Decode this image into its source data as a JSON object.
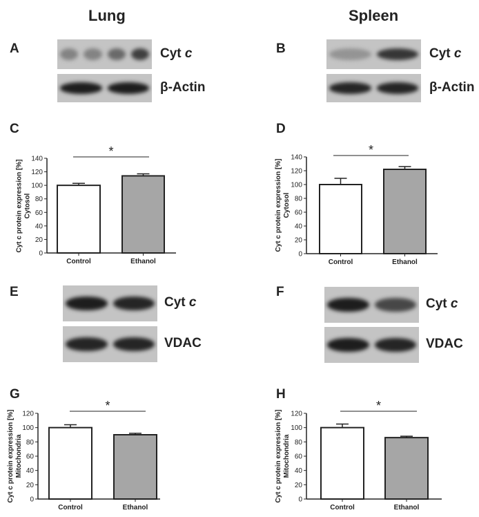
{
  "columns": {
    "left": "Lung",
    "right": "Spleen"
  },
  "panels": {
    "A": "A",
    "B": "B",
    "C": "C",
    "D": "D",
    "E": "E",
    "F": "F",
    "G": "G",
    "H": "H"
  },
  "blots": {
    "A": [
      {
        "label": "Cyt ",
        "label_italic": "c",
        "bands": [
          0.35,
          0.35,
          0.5,
          0.75
        ]
      },
      {
        "label": "β-Actin",
        "label_italic": "",
        "bands": [
          0.95,
          0.95
        ]
      }
    ],
    "B": [
      {
        "label": "Cyt ",
        "label_italic": "c",
        "bands": [
          0.25,
          0.8
        ]
      },
      {
        "label": "β-Actin",
        "label_italic": "",
        "bands": [
          0.9,
          0.9
        ]
      }
    ],
    "E": [
      {
        "label": "Cyt ",
        "label_italic": "c",
        "bands": [
          0.95,
          0.9
        ]
      },
      {
        "label": "VDAC",
        "label_italic": "",
        "bands": [
          0.9,
          0.9
        ]
      }
    ],
    "F": [
      {
        "label": "Cyt ",
        "label_italic": "c",
        "bands": [
          0.95,
          0.7
        ]
      },
      {
        "label": "VDAC",
        "label_italic": "",
        "bands": [
          0.95,
          0.9
        ]
      }
    ]
  },
  "chart_data": [
    {
      "panel": "C",
      "type": "bar",
      "categories": [
        "Control",
        "Ethanol"
      ],
      "values": [
        100,
        114
      ],
      "errors": [
        3,
        3
      ],
      "colors": [
        "#ffffff",
        "#a6a6a6"
      ],
      "ylabel": [
        "Cyt c protein expression [%]",
        "Cytosol"
      ],
      "ylim": [
        0,
        140
      ],
      "yticks": [
        0,
        20,
        40,
        60,
        80,
        100,
        120,
        140
      ],
      "significance": "*",
      "grid": false
    },
    {
      "panel": "D",
      "type": "bar",
      "categories": [
        "Control",
        "Ethanol"
      ],
      "values": [
        100,
        122
      ],
      "errors": [
        9,
        4
      ],
      "colors": [
        "#ffffff",
        "#a6a6a6"
      ],
      "ylabel": [
        "Cyt c protein expression [%]",
        "Cytosol"
      ],
      "ylim": [
        0,
        140
      ],
      "yticks": [
        0,
        20,
        40,
        60,
        80,
        100,
        120,
        140
      ],
      "significance": "*",
      "grid": false
    },
    {
      "panel": "G",
      "type": "bar",
      "categories": [
        "Control",
        "Ethanol"
      ],
      "values": [
        100,
        90
      ],
      "errors": [
        4,
        2
      ],
      "colors": [
        "#ffffff",
        "#a6a6a6"
      ],
      "ylabel": [
        "Cyt c protein expression [%]",
        "Mitochondria"
      ],
      "ylim": [
        0,
        120
      ],
      "yticks": [
        0,
        20,
        40,
        60,
        80,
        100,
        120
      ],
      "significance": "*",
      "grid": false
    },
    {
      "panel": "H",
      "type": "bar",
      "categories": [
        "Control",
        "Ethanol"
      ],
      "values": [
        100,
        86
      ],
      "errors": [
        5,
        2
      ],
      "colors": [
        "#ffffff",
        "#a6a6a6"
      ],
      "ylabel": [
        "Cyt c protein expression [%]",
        "Mitochondria"
      ],
      "ylim": [
        0,
        120
      ],
      "yticks": [
        0,
        20,
        40,
        60,
        80,
        100,
        120
      ],
      "significance": "*",
      "grid": false
    }
  ]
}
